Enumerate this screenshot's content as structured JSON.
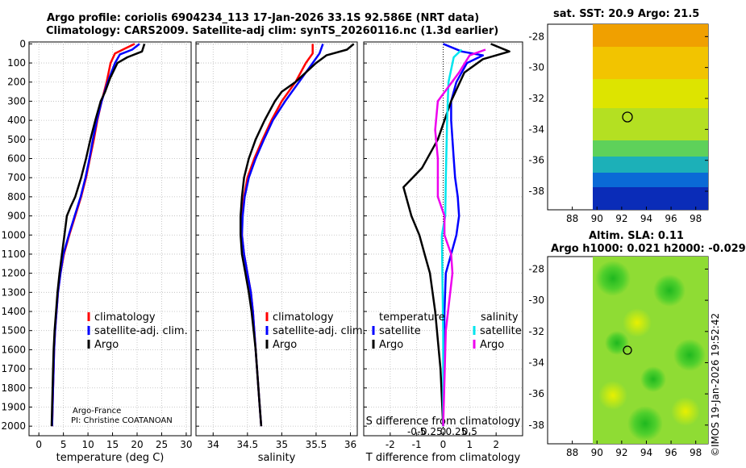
{
  "header": {
    "title_line1": "Argo profile: coriolis 6904234_113 17-Jan-2026 33.1S 92.586E (NRT data)",
    "title_line2": "Climatology: CARS2009. Satellite-adj clim: synTS_20260116.nc (1.3d earlier)"
  },
  "colors": {
    "climatology": "#ff0000",
    "satellite_adj": "#0000ff",
    "argo": "#000000",
    "sat_s": "#00e5ee",
    "argo_s": "#ee00ee"
  },
  "credits": {
    "line1": "Argo-France",
    "line2": "PI: Christine COATANOAN",
    "stamp": "©IMOS 19-Jan-2026 19:52:42"
  },
  "depth_ticks": [
    "0",
    "100",
    "200",
    "300",
    "400",
    "500",
    "600",
    "700",
    "800",
    "900",
    "1000",
    "1100",
    "1200",
    "1300",
    "1400",
    "1500",
    "1600",
    "1700",
    "1800",
    "1900",
    "2000"
  ],
  "legends": {
    "temp": [
      "climatology",
      "satellite-adj. clim.",
      "Argo"
    ],
    "sal": [
      "climatology",
      "satellite-adj. clim.",
      "Argo"
    ],
    "diff": {
      "temp_head": "temperature",
      "sal_head": "salinity",
      "temp_sat": "satellite",
      "temp_argo": "Argo",
      "sal_sat": "satellite",
      "sal_argo": "Argo"
    }
  },
  "chart_data": [
    {
      "type": "line",
      "id": "temperature",
      "xlabel": "temperature (deg C)",
      "ylabel": "depth",
      "xlim": [
        -2,
        31
      ],
      "ylim": [
        2050,
        0
      ],
      "xticks": [
        "0",
        "5",
        "10",
        "15",
        "20",
        "25",
        "30"
      ],
      "series": [
        {
          "name": "climatology",
          "points": [
            [
              19.5,
              0
            ],
            [
              17.5,
              25
            ],
            [
              15.5,
              50
            ],
            [
              14.6,
              100
            ],
            [
              13.8,
              200
            ],
            [
              12.8,
              300
            ],
            [
              11.9,
              400
            ],
            [
              11.2,
              500
            ],
            [
              10.4,
              600
            ],
            [
              9.6,
              700
            ],
            [
              8.6,
              800
            ],
            [
              7.4,
              900
            ],
            [
              6.2,
              1000
            ],
            [
              5.1,
              1100
            ],
            [
              4.4,
              1200
            ],
            [
              3.9,
              1300
            ],
            [
              3.6,
              1400
            ],
            [
              3.3,
              1500
            ],
            [
              3.1,
              1600
            ],
            [
              3.0,
              1700
            ],
            [
              2.9,
              1800
            ],
            [
              2.8,
              1900
            ],
            [
              2.7,
              2000
            ]
          ]
        },
        {
          "name": "satellite-adj. clim.",
          "points": [
            [
              20.5,
              0
            ],
            [
              19.0,
              30
            ],
            [
              16.5,
              55
            ],
            [
              15.5,
              100
            ],
            [
              14.0,
              200
            ],
            [
              12.8,
              300
            ],
            [
              11.8,
              400
            ],
            [
              11.0,
              500
            ],
            [
              10.3,
              600
            ],
            [
              9.5,
              700
            ],
            [
              8.5,
              800
            ],
            [
              7.3,
              900
            ],
            [
              6.1,
              1000
            ],
            [
              5.0,
              1100
            ],
            [
              4.4,
              1200
            ],
            [
              3.9,
              1300
            ],
            [
              3.6,
              1400
            ],
            [
              3.3,
              1500
            ],
            [
              3.1,
              1600
            ],
            [
              3.0,
              1700
            ],
            [
              2.9,
              1800
            ],
            [
              2.8,
              1900
            ],
            [
              2.7,
              2000
            ]
          ]
        },
        {
          "name": "Argo",
          "points": [
            [
              21.5,
              0
            ],
            [
              21.0,
              40
            ],
            [
              18.0,
              70
            ],
            [
              16.0,
              100
            ],
            [
              14.5,
              180
            ],
            [
              13.5,
              250
            ],
            [
              12.6,
              300
            ],
            [
              11.5,
              400
            ],
            [
              10.5,
              500
            ],
            [
              9.6,
              600
            ],
            [
              8.6,
              700
            ],
            [
              7.4,
              800
            ],
            [
              6.5,
              850
            ],
            [
              5.7,
              900
            ],
            [
              5.2,
              1000
            ],
            [
              4.7,
              1100
            ],
            [
              4.2,
              1200
            ],
            [
              3.8,
              1300
            ],
            [
              3.5,
              1400
            ],
            [
              3.2,
              1500
            ],
            [
              3.0,
              1600
            ],
            [
              2.9,
              1700
            ],
            [
              2.8,
              1800
            ],
            [
              2.7,
              1900
            ],
            [
              2.6,
              2000
            ]
          ]
        }
      ]
    },
    {
      "type": "line",
      "id": "salinity",
      "xlabel": "salinity",
      "ylabel": "depth",
      "xlim": [
        33.75,
        36.1
      ],
      "ylim": [
        2050,
        0
      ],
      "xticks": [
        "34",
        "34.5",
        "35",
        "35.5",
        "36"
      ],
      "series": [
        {
          "name": "climatology",
          "points": [
            [
              35.45,
              0
            ],
            [
              35.45,
              50
            ],
            [
              35.35,
              100
            ],
            [
              35.2,
              200
            ],
            [
              35.0,
              300
            ],
            [
              34.85,
              400
            ],
            [
              34.72,
              500
            ],
            [
              34.6,
              600
            ],
            [
              34.5,
              700
            ],
            [
              34.45,
              800
            ],
            [
              34.42,
              900
            ],
            [
              34.42,
              1000
            ],
            [
              34.45,
              1100
            ],
            [
              34.5,
              1200
            ],
            [
              34.55,
              1300
            ],
            [
              34.58,
              1400
            ],
            [
              34.6,
              1500
            ],
            [
              34.62,
              1600
            ],
            [
              34.64,
              1700
            ],
            [
              34.66,
              1800
            ],
            [
              34.68,
              1900
            ],
            [
              34.7,
              2000
            ]
          ]
        },
        {
          "name": "satellite-adj. clim.",
          "points": [
            [
              35.6,
              0
            ],
            [
              35.55,
              50
            ],
            [
              35.45,
              100
            ],
            [
              35.25,
              200
            ],
            [
              35.05,
              300
            ],
            [
              34.87,
              400
            ],
            [
              34.74,
              500
            ],
            [
              34.62,
              600
            ],
            [
              34.52,
              700
            ],
            [
              34.46,
              800
            ],
            [
              34.43,
              900
            ],
            [
              34.42,
              1000
            ],
            [
              34.45,
              1100
            ],
            [
              34.5,
              1200
            ],
            [
              34.55,
              1300
            ],
            [
              34.58,
              1400
            ],
            [
              34.6,
              1500
            ],
            [
              34.62,
              1600
            ],
            [
              34.64,
              1700
            ],
            [
              34.66,
              1800
            ],
            [
              34.68,
              1900
            ],
            [
              34.7,
              2000
            ]
          ]
        },
        {
          "name": "Argo",
          "points": [
            [
              36.05,
              0
            ],
            [
              35.95,
              30
            ],
            [
              35.65,
              60
            ],
            [
              35.5,
              100
            ],
            [
              35.2,
              200
            ],
            [
              35.0,
              250
            ],
            [
              34.9,
              300
            ],
            [
              34.75,
              400
            ],
            [
              34.62,
              500
            ],
            [
              34.52,
              600
            ],
            [
              34.45,
              700
            ],
            [
              34.42,
              800
            ],
            [
              34.4,
              900
            ],
            [
              34.4,
              1000
            ],
            [
              34.42,
              1100
            ],
            [
              34.47,
              1200
            ],
            [
              34.52,
              1300
            ],
            [
              34.56,
              1400
            ],
            [
              34.59,
              1500
            ],
            [
              34.62,
              1600
            ],
            [
              34.64,
              1700
            ],
            [
              34.66,
              1800
            ],
            [
              34.68,
              1900
            ],
            [
              34.7,
              2000
            ]
          ]
        }
      ]
    },
    {
      "type": "line",
      "id": "differences",
      "xlabel": "T difference from climatology",
      "xlabel_top": "S difference from climatology",
      "ylabel": "depth",
      "xlim": [
        -3.0,
        3.0
      ],
      "ylim": [
        2050,
        0
      ],
      "xticks": [
        "-2",
        "-1",
        "0",
        "1",
        "2"
      ],
      "sticks": [
        "-0.5",
        "-0.25",
        "0",
        "0.25",
        "0.5"
      ],
      "series": [
        {
          "name": "T satellite",
          "points": [
            [
              0,
              0
            ],
            [
              0.7,
              40
            ],
            [
              1.5,
              60
            ],
            [
              0.9,
              100
            ],
            [
              0.5,
              200
            ],
            [
              0.3,
              300
            ],
            [
              0.3,
              400
            ],
            [
              0.35,
              500
            ],
            [
              0.4,
              600
            ],
            [
              0.45,
              700
            ],
            [
              0.55,
              800
            ],
            [
              0.6,
              900
            ],
            [
              0.5,
              1000
            ],
            [
              0.3,
              1100
            ],
            [
              0.1,
              1200
            ],
            [
              0.05,
              1400
            ],
            [
              0,
              2000
            ]
          ]
        },
        {
          "name": "T Argo",
          "points": [
            [
              1.8,
              0
            ],
            [
              2.5,
              40
            ],
            [
              2.0,
              60
            ],
            [
              1.5,
              80
            ],
            [
              0.8,
              150
            ],
            [
              0.3,
              300
            ],
            [
              -0.2,
              500
            ],
            [
              -0.8,
              650
            ],
            [
              -1.5,
              750
            ],
            [
              -1.2,
              900
            ],
            [
              -0.9,
              1000
            ],
            [
              -0.7,
              1100
            ],
            [
              -0.5,
              1200
            ],
            [
              -0.3,
              1400
            ],
            [
              -0.1,
              1700
            ],
            [
              0,
              2000
            ]
          ]
        },
        {
          "name": "S satellite",
          "points": [
            [
              0.7,
              30
            ],
            [
              0.4,
              70
            ],
            [
              0.2,
              200
            ],
            [
              0.15,
              400
            ],
            [
              0.1,
              700
            ],
            [
              0.08,
              900
            ],
            [
              -0.05,
              1000
            ],
            [
              -0.03,
              1200
            ],
            [
              0,
              1500
            ],
            [
              0,
              2000
            ]
          ]
        },
        {
          "name": "S Argo",
          "points": [
            [
              1.6,
              30
            ],
            [
              1.0,
              60
            ],
            [
              0.6,
              150
            ],
            [
              -0.2,
              300
            ],
            [
              -0.3,
              450
            ],
            [
              -0.2,
              600
            ],
            [
              -0.2,
              800
            ],
            [
              0.05,
              900
            ],
            [
              0.05,
              1000
            ],
            [
              0.3,
              1100
            ],
            [
              0.35,
              1200
            ],
            [
              0.1,
              1500
            ],
            [
              0,
              2000
            ]
          ]
        }
      ]
    }
  ],
  "maps": {
    "sst": {
      "title": "sat. SST: 20.9  Argo: 21.5",
      "yticks": [
        "-28",
        "-30",
        "-32",
        "-34",
        "-36",
        "-38"
      ],
      "xticks": [
        "88",
        "90",
        "92",
        "94",
        "96",
        "98"
      ]
    },
    "sla": {
      "title_line1": "Altim. SLA: 0.11",
      "title_line2": "Argo h1000: 0.021 h2000: -0.029",
      "yticks": [
        "-28",
        "-30",
        "-32",
        "-34",
        "-36",
        "-38"
      ],
      "xticks": [
        "88",
        "90",
        "92",
        "94",
        "96",
        "98"
      ]
    }
  }
}
